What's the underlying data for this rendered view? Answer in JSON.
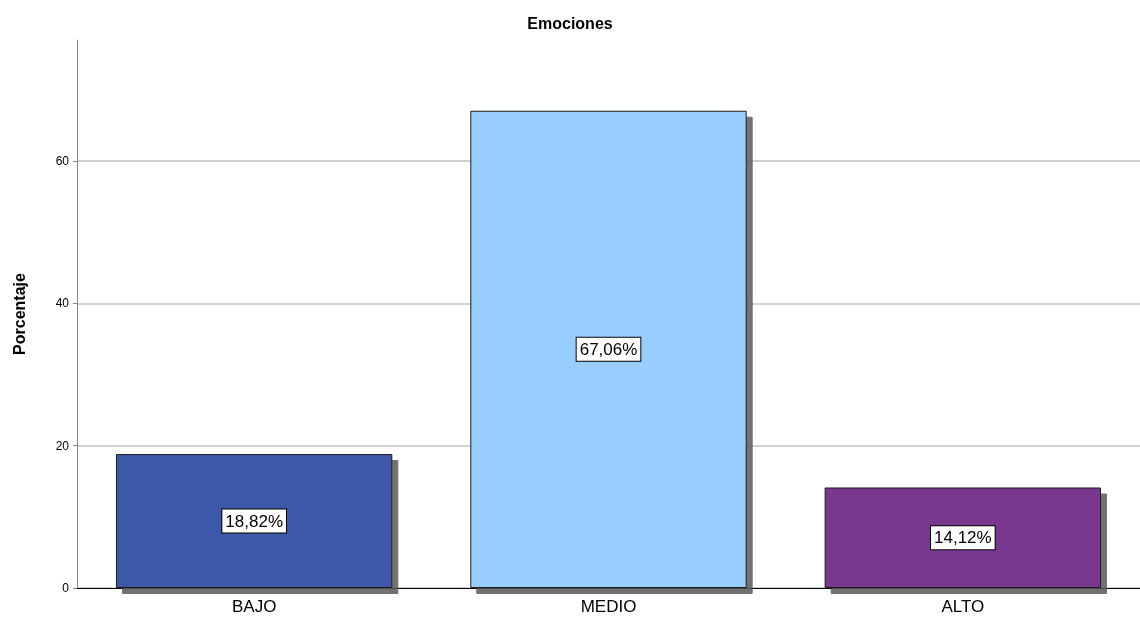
{
  "chart_data": {
    "type": "bar",
    "title": "Emociones",
    "ylabel": "Porcentaje",
    "categories": [
      "BAJO",
      "MEDIO",
      "ALTO"
    ],
    "values": [
      18.82,
      67.06,
      14.12
    ],
    "colors": [
      "#3e58a8",
      "#99ccff",
      "#79388d"
    ],
    "value_labels": [
      "18,82%",
      "67,06%",
      "14,12%"
    ],
    "ylim": [
      0,
      77
    ],
    "yticks": [
      0,
      20,
      40,
      60
    ],
    "grid": "y"
  }
}
